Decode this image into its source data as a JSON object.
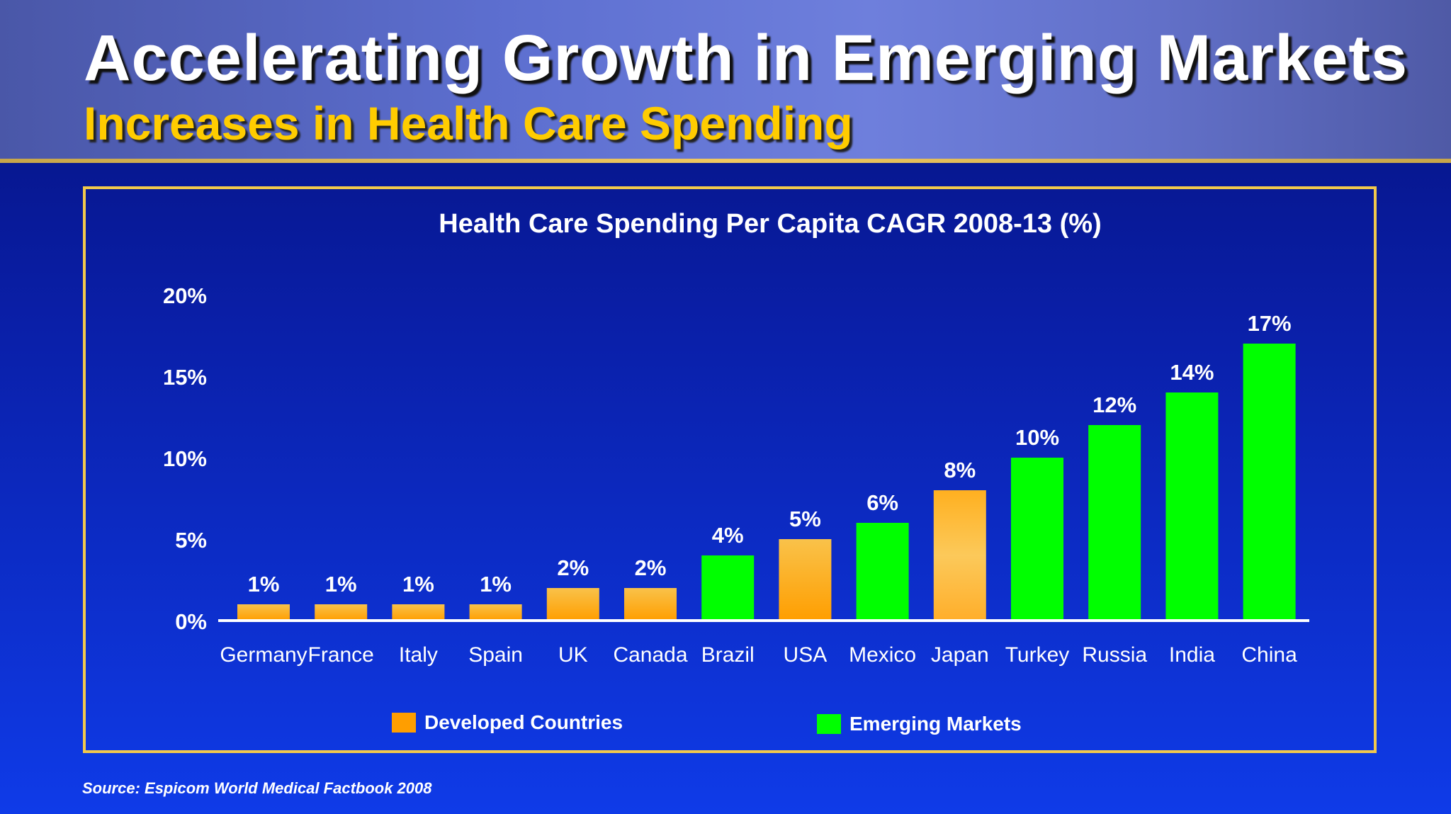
{
  "header": {
    "title": "Accelerating Growth in Emerging Markets",
    "subtitle": "Increases in Health Care Spending"
  },
  "source": "Source: Espicom World Medical Factbook 2008",
  "colors": {
    "developed": "#ff9e00",
    "developed_light": "#f9c24a",
    "emerging": "#00ff00",
    "title_yellow": "#ffcc00",
    "frame": "#f2c94c"
  },
  "chart_data": {
    "type": "bar",
    "title": "Health Care Spending Per Capita CAGR 2008-13 (%)",
    "xlabel": "",
    "ylabel": "",
    "ylim": [
      0,
      20
    ],
    "yticks": [
      "0%",
      "5%",
      "10%",
      "15%",
      "20%"
    ],
    "ytick_values": [
      0,
      5,
      10,
      15,
      20
    ],
    "grid": false,
    "categories": [
      "Germany",
      "France",
      "Italy",
      "Spain",
      "UK",
      "Canada",
      "Brazil",
      "USA",
      "Mexico",
      "Japan",
      "Turkey",
      "Russia",
      "India",
      "China"
    ],
    "values": [
      1,
      1,
      1,
      1,
      2,
      2,
      4,
      5,
      6,
      8,
      10,
      12,
      14,
      17
    ],
    "value_labels": [
      "1%",
      "1%",
      "1%",
      "1%",
      "2%",
      "2%",
      "4%",
      "5%",
      "6%",
      "8%",
      "10%",
      "12%",
      "14%",
      "17%"
    ],
    "groups": [
      "Developed Countries",
      "Developed Countries",
      "Developed Countries",
      "Developed Countries",
      "Developed Countries",
      "Developed Countries",
      "Emerging Markets",
      "Developed Countries",
      "Emerging Markets",
      "Developed Countries",
      "Emerging Markets",
      "Emerging Markets",
      "Emerging Markets",
      "Emerging Markets"
    ],
    "legend": [
      {
        "name": "Developed Countries",
        "color": "#ff9e00"
      },
      {
        "name": "Emerging Markets",
        "color": "#00ff00"
      }
    ],
    "legend_position": "bottom"
  }
}
